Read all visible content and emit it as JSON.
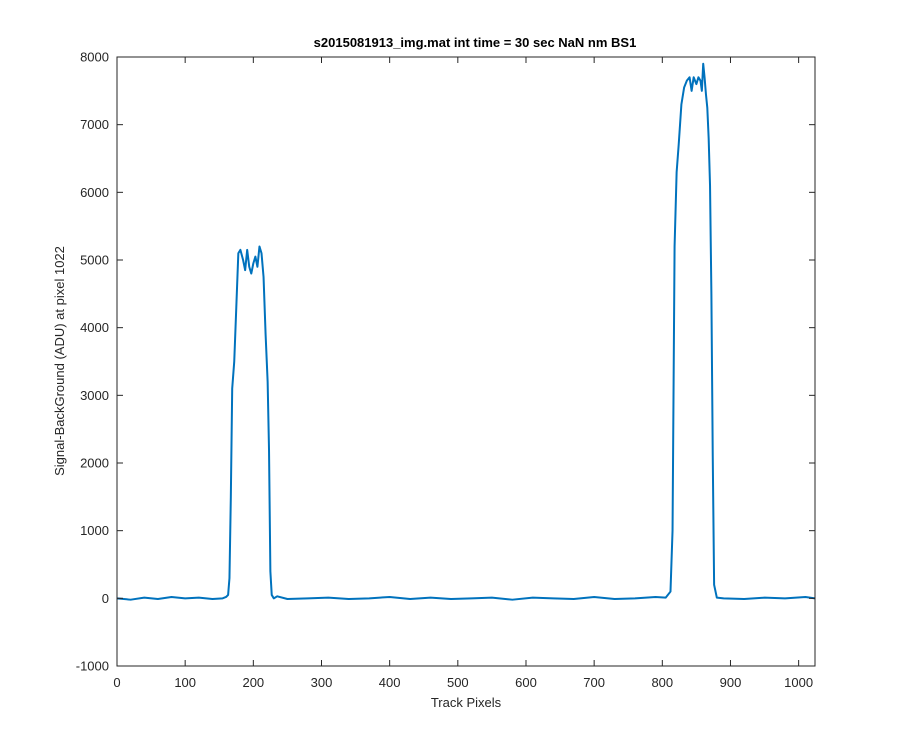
{
  "chart_data": {
    "type": "line",
    "title": "s2015081913_img.mat int time = 30 sec  NaN nm BS1",
    "xlabel": "Track Pixels",
    "ylabel": "Signal-BackGround (ADU) at pixel 1022",
    "xlim": [
      0,
      1024
    ],
    "ylim": [
      -1000,
      8000
    ],
    "xticks": [
      0,
      100,
      200,
      300,
      400,
      500,
      600,
      700,
      800,
      900,
      1000
    ],
    "yticks": [
      -1000,
      0,
      1000,
      2000,
      3000,
      4000,
      5000,
      6000,
      7000,
      8000
    ],
    "grid": false,
    "box": true,
    "line_color": "#0072BD",
    "series": [
      {
        "x": [
          0,
          20,
          40,
          60,
          80,
          100,
          120,
          140,
          155,
          160,
          163,
          165,
          167,
          169,
          172,
          175,
          178,
          181,
          185,
          188,
          191,
          194,
          197,
          200,
          203,
          206,
          209,
          212,
          215,
          218,
          221,
          223,
          225,
          227,
          230,
          235,
          250,
          280,
          310,
          340,
          370,
          400,
          430,
          460,
          490,
          520,
          550,
          580,
          610,
          640,
          670,
          700,
          730,
          760,
          790,
          805,
          812,
          815,
          818,
          821,
          824,
          828,
          832,
          836,
          840,
          843,
          846,
          850,
          853,
          856,
          858,
          860,
          862,
          864,
          866,
          868,
          870,
          872,
          874,
          876,
          880,
          890,
          920,
          950,
          980,
          1010,
          1024
        ],
        "y": [
          0,
          -20,
          10,
          -10,
          20,
          0,
          10,
          -10,
          0,
          20,
          50,
          300,
          1500,
          3100,
          3500,
          4300,
          5100,
          5150,
          5000,
          4850,
          5150,
          4900,
          4800,
          4950,
          5050,
          4900,
          5200,
          5100,
          4750,
          3900,
          3200,
          2200,
          400,
          50,
          0,
          30,
          -10,
          0,
          10,
          -10,
          0,
          20,
          -10,
          10,
          -10,
          0,
          10,
          -20,
          10,
          0,
          -10,
          20,
          -10,
          0,
          20,
          10,
          100,
          1000,
          5200,
          6300,
          6700,
          7300,
          7550,
          7650,
          7700,
          7500,
          7700,
          7600,
          7700,
          7650,
          7500,
          7900,
          7700,
          7450,
          7250,
          6800,
          6100,
          4500,
          2100,
          200,
          10,
          0,
          -10,
          10,
          0,
          20,
          0
        ]
      }
    ]
  }
}
